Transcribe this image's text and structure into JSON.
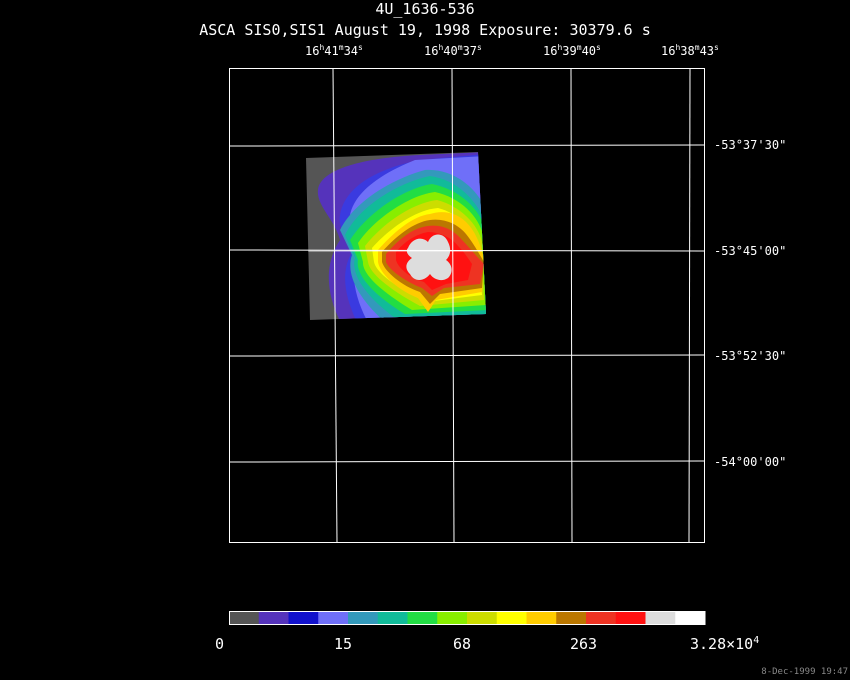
{
  "title": "4U_1636-536",
  "subtitle": "ASCA SIS0,SIS1 August 19, 1998 Exposure: 30379.6 s",
  "ra_labels": [
    {
      "h": "16",
      "m": "41",
      "s": "34"
    },
    {
      "h": "16",
      "m": "40",
      "s": "37"
    },
    {
      "h": "16",
      "m": "39",
      "s": "40"
    },
    {
      "h": "16",
      "m": "38",
      "s": "43"
    }
  ],
  "dec_labels": [
    {
      "d": "-53",
      "m": "37",
      "s": "30"
    },
    {
      "d": "-53",
      "m": "45",
      "s": "00"
    },
    {
      "d": "-53",
      "m": "52",
      "s": "30"
    },
    {
      "d": "-54",
      "m": "00",
      "s": "00"
    }
  ],
  "colorbar": {
    "labels": [
      "0",
      "15",
      "68",
      "263"
    ],
    "max_mantissa": "3.28",
    "max_exponent": "4",
    "colors": [
      "#555555",
      "#5533bb",
      "#1111cc",
      "#6f6ff8",
      "#3399bb",
      "#11bb99",
      "#22dd44",
      "#88ee00",
      "#ccdd00",
      "#ffff00",
      "#ffcc00",
      "#bb7700",
      "#ee3322",
      "#ff1111",
      "#dddddd",
      "#ffffff"
    ]
  },
  "footer": "8-Dec-1999 19:47"
}
